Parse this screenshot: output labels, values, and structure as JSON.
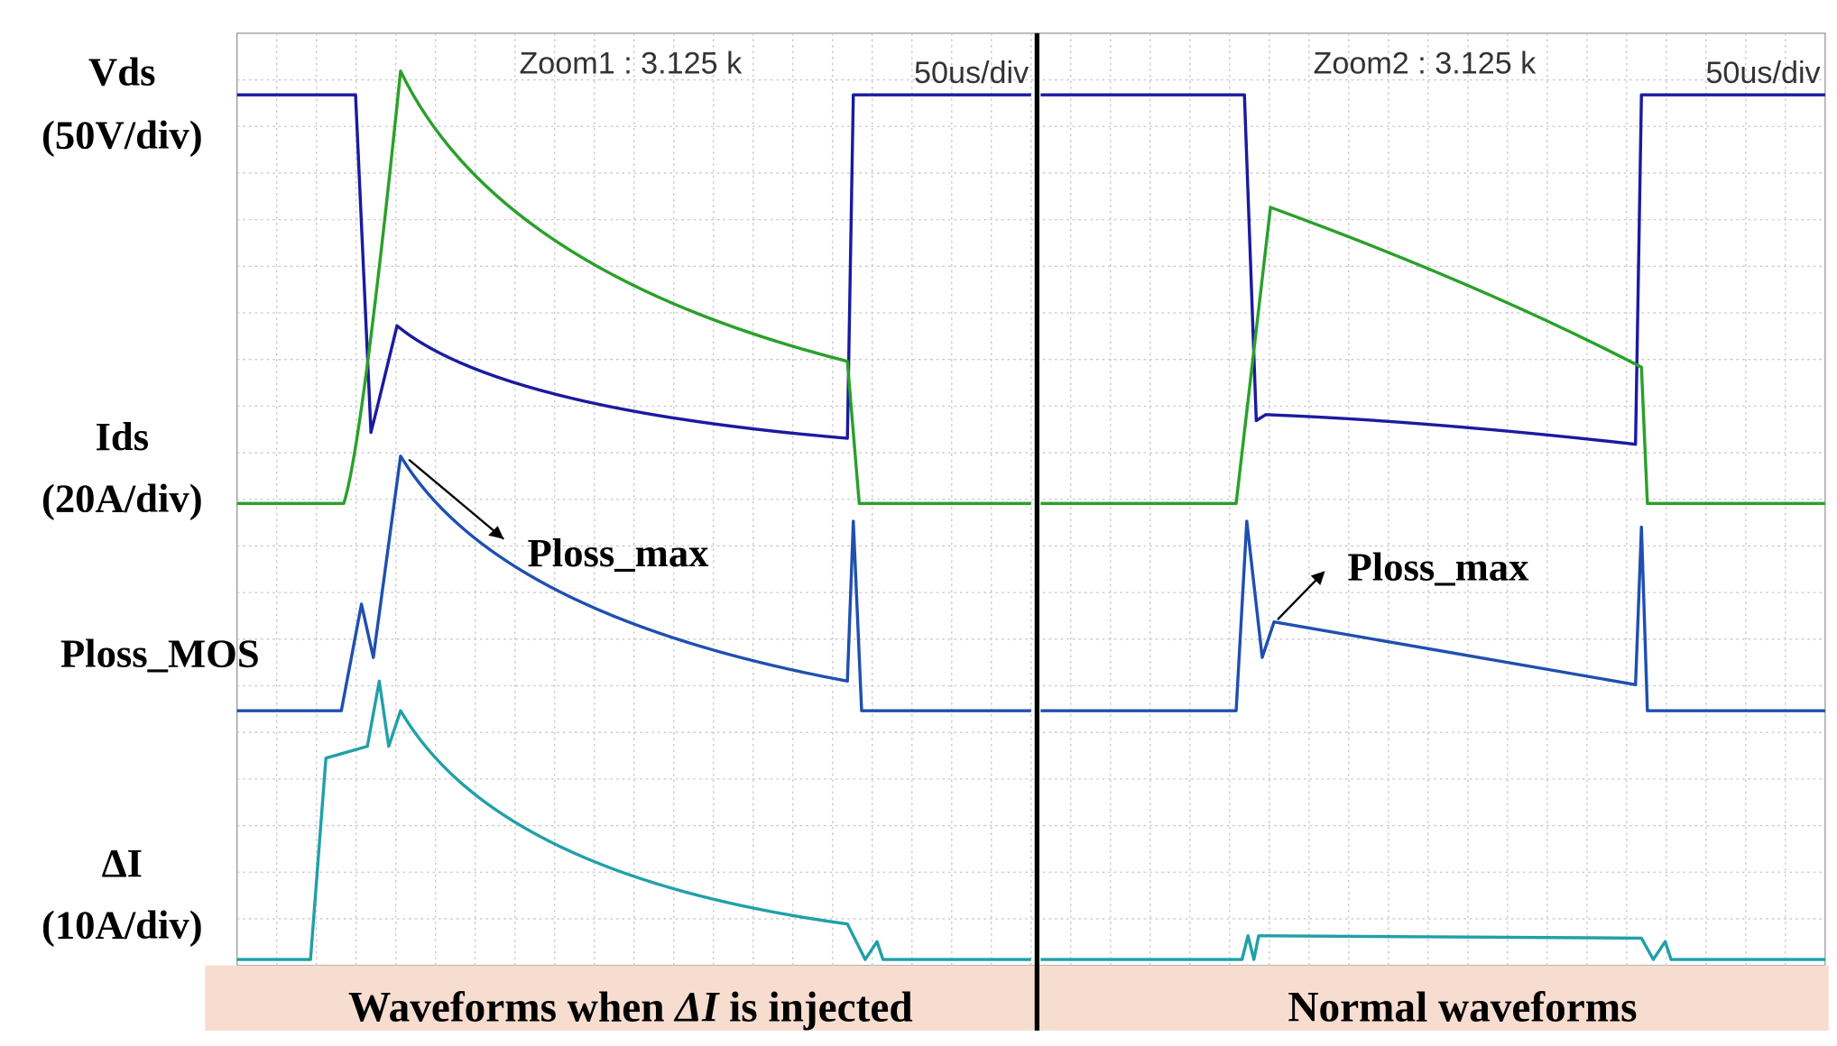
{
  "labels": {
    "vds": "Vds",
    "vds_scale": "(50V/div)",
    "ids": "Ids",
    "ids_scale": "(20A/div)",
    "ploss": "Ploss_MOS",
    "di": "ΔI",
    "di_scale": "(10A/div)"
  },
  "left_panel": {
    "zoom": "Zoom1 : 3.125 k",
    "timebase": "50us/div",
    "annotation": "Ploss_max",
    "caption": {
      "before": "Waveforms when ",
      "italic": "ΔI",
      "after": " is injected"
    }
  },
  "right_panel": {
    "zoom": "Zoom2 : 3.125 k",
    "timebase": "50us/div",
    "annotation": "Ploss_max",
    "caption": "Normal waveforms"
  }
}
